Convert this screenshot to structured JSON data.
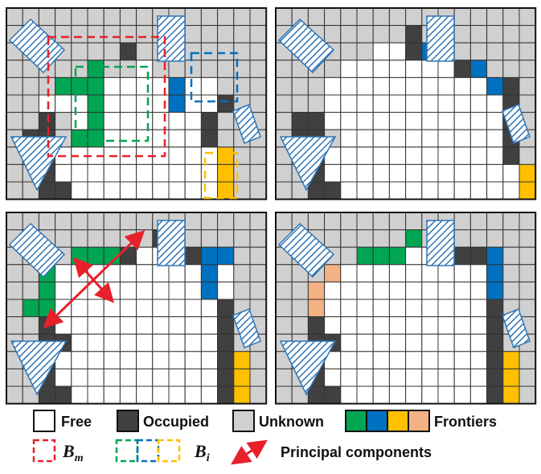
{
  "legend": {
    "free_label": "Free",
    "occupied_label": "Occupied",
    "unknown_label": "Unknown",
    "frontiers_label": "Frontiers",
    "bm_label": "B",
    "bm_sub": "m",
    "bi_label": "B",
    "bi_sub": "i",
    "pc_label": "Principal components"
  },
  "colors": {
    "free": "#ffffff",
    "occupied": "#404040",
    "unknown": "#d0d0d0",
    "grid_line": "#333333",
    "frontier_green": "#00a651",
    "frontier_blue": "#0070c0",
    "frontier_yellow": "#ffc000",
    "frontier_pink": "#f4b183",
    "box_red": "#e8202a",
    "arrow_red": "#e8202a",
    "obstacle_hatch": "#2e75b6"
  },
  "grid": {
    "cols": 16,
    "rows": 11,
    "legend_codes": "0 = free, 1 = occupied, 2 = unknown, g/b/y/p = frontier"
  },
  "panels": [
    {
      "name": "top-left",
      "rows": [
        "2222222222222222",
        "2222222222222222",
        "2222222122222222",
        "22222g2202222222",
        "222ggg0000b00222",
        "22000g0000b00122",
        "22120g0000001222",
        "2112gg0000001222",
        "2210000000000y22",
        "2210000000000y22",
        "2211000000000y22"
      ]
    },
    {
      "name": "top-right",
      "rows": [
        "2222222222222222",
        "2222222212222222",
        "222222001bb22222",
        "222200000001b222",
        "2220000000000b12",
        "2220000000000012",
        "2110000000000012",
        "2112000000000012",
        "2210000000000012",
        "221000000000000y",
        "221100000000000y"
      ]
    },
    {
      "name": "bottom-left",
      "rows": [
        "2222222222222222",
        "2222222221222222",
        "2222ggg10001bb22",
        "22g000000000b022",
        "22g000000000b022",
        "2gg0000000000122",
        "2210000000000122",
        "2211000000000122",
        "22100000000001y2",
        "22100000000001y2",
        "22110000000001y2"
      ]
    },
    {
      "name": "bottom-right",
      "rows": [
        "2222222222222222",
        "22222222g2222222",
        "22222ggg00011b22",
        "222p000000000b22",
        "22p0000000000b22",
        "22p0000000000122",
        "2210000000000122",
        "2211000000000122",
        "22100000000001y2",
        "22100000000001y2",
        "22110000000001y2"
      ]
    }
  ]
}
